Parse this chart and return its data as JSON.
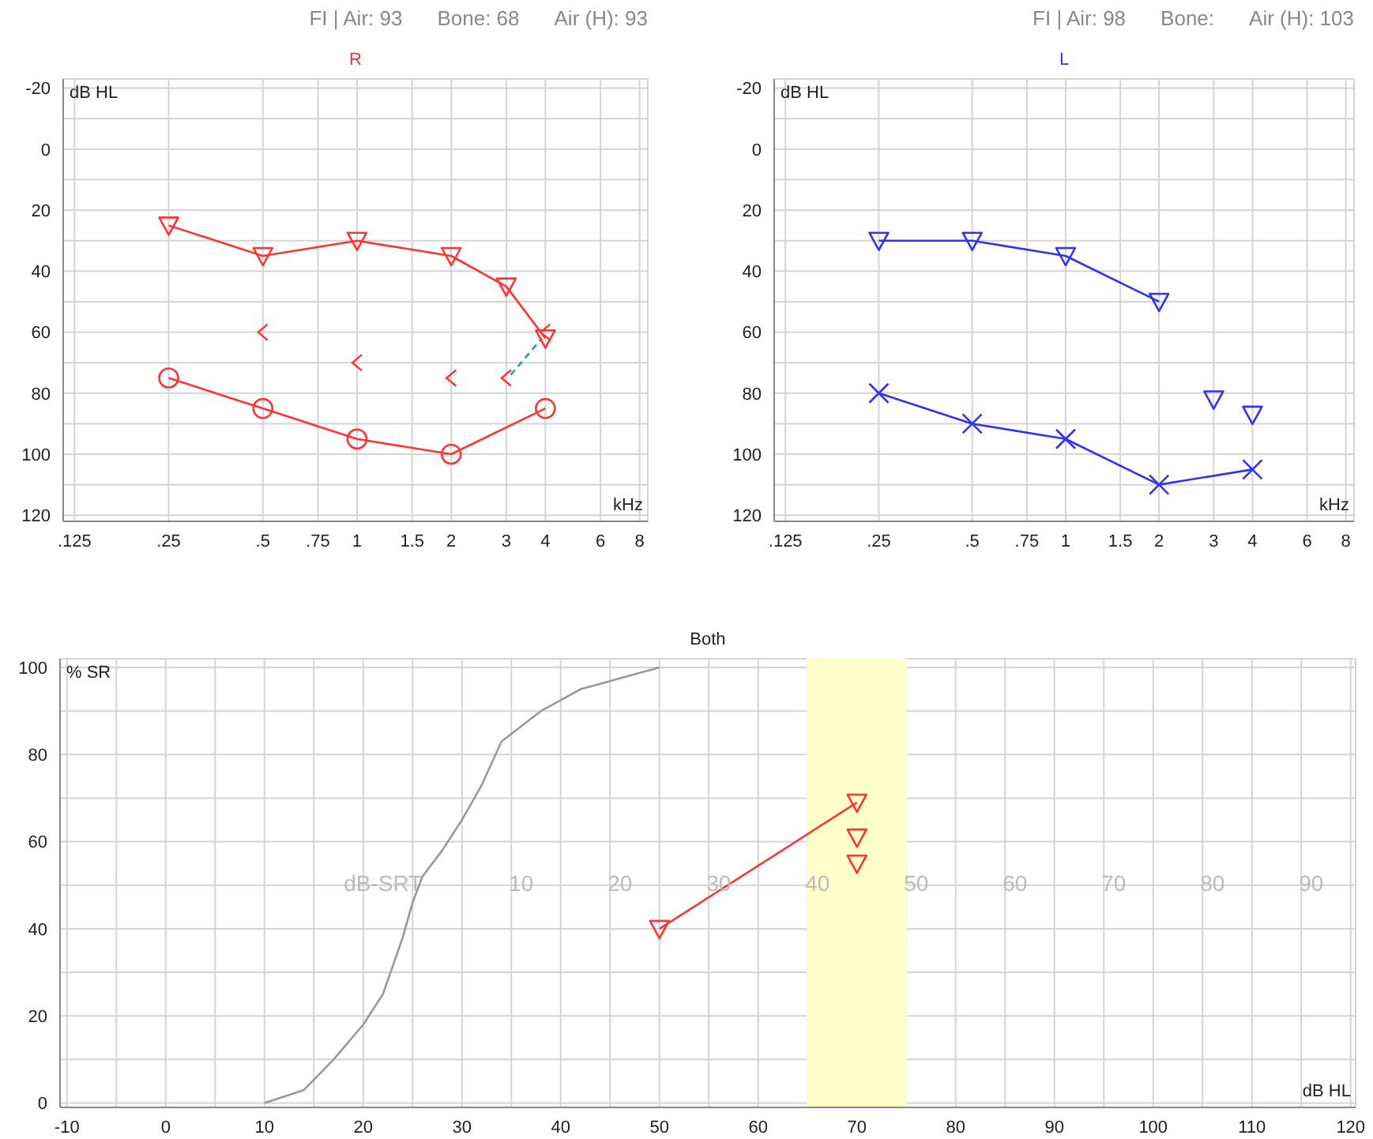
{
  "chart_data": [
    {
      "type": "line",
      "title": "R",
      "xlabel": "kHz",
      "ylabel": "dB HL",
      "annotations": [
        "FI | Air: 93",
        "Bone: 68",
        "Air (H): 93"
      ],
      "log": "x",
      "grid": true,
      "xlim": [
        0.115,
        8.5
      ],
      "xticks": [
        {
          "value": 0.125,
          "label": ".125"
        },
        {
          "value": 0.25,
          "label": ".25"
        },
        {
          "value": 0.5,
          "label": ".5"
        },
        {
          "value": 0.75,
          "label": ".75"
        },
        1,
        {
          "value": 1.5,
          "label": "1.5"
        },
        2,
        3,
        4,
        6,
        8
      ],
      "ylim": [
        122,
        -23
      ],
      "yticks": [
        -20,
        {
          "value": -10,
          "label": null
        },
        0,
        {
          "value": 10,
          "label": null
        },
        20,
        {
          "value": 30,
          "label": null
        },
        40,
        {
          "value": 50,
          "label": null
        },
        60,
        {
          "value": 70,
          "label": null
        },
        80,
        {
          "value": 90,
          "label": null
        },
        100,
        {
          "value": 110,
          "label": null
        },
        120
      ],
      "series": [
        {
          "type": "line",
          "color": "#ff3333",
          "marker": "triangle",
          "x": [
            0.25,
            0.5,
            1,
            2,
            3,
            4
          ],
          "values": [
            25,
            35,
            30,
            35,
            45,
            62
          ]
        },
        {
          "type": "scatter",
          "color": "#ff3333",
          "marker": "cross",
          "x": [
            0.5,
            1,
            2,
            3,
            4
          ],
          "values": [
            60,
            70,
            75,
            75,
            60
          ]
        },
        {
          "type": "line",
          "color": "#ff3333",
          "marker": "circle",
          "x": [
            0.25,
            0.5,
            1,
            2,
            4
          ],
          "values": [
            75,
            85,
            95,
            100,
            85
          ]
        },
        {
          "type": "line",
          "color": "#339999",
          "line_style": "dashed",
          "marker": "none",
          "x": [
            3.1,
            3.9
          ],
          "values": [
            74,
            62
          ]
        }
      ]
    },
    {
      "type": "line",
      "title": "L",
      "xlabel": "kHz",
      "ylabel": "dB HL",
      "annotations": [
        "FI | Air: 98",
        "Bone:",
        "Air (H): 103"
      ],
      "log": "x",
      "grid": true,
      "xlim": [
        0.115,
        8.5
      ],
      "xticks": [
        {
          "value": 0.125,
          "label": ".125"
        },
        {
          "value": 0.25,
          "label": ".25"
        },
        {
          "value": 0.5,
          "label": ".5"
        },
        {
          "value": 0.75,
          "label": ".75"
        },
        1,
        {
          "value": 1.5,
          "label": "1.5"
        },
        2,
        3,
        4,
        6,
        8
      ],
      "ylim": [
        122,
        -23
      ],
      "yticks": [
        -20,
        {
          "value": -10,
          "label": null
        },
        0,
        {
          "value": 10,
          "label": null
        },
        20,
        {
          "value": 30,
          "label": null
        },
        40,
        {
          "value": 50,
          "label": null
        },
        60,
        {
          "value": 70,
          "label": null
        },
        80,
        {
          "value": 90,
          "label": null
        },
        100,
        {
          "value": 110,
          "label": null
        },
        120
      ],
      "series": [
        {
          "type": "line",
          "color": "#3333ee",
          "marker": "triangle",
          "x": [
            0.25,
            0.5,
            1,
            2
          ],
          "values": [
            30,
            30,
            35,
            50
          ]
        },
        {
          "type": "scatter",
          "color": "#3333ee",
          "marker": "triangle",
          "x": [
            3,
            4
          ],
          "values": [
            82,
            87
          ]
        },
        {
          "type": "line",
          "color": "#3333ee",
          "marker": "cross",
          "x": [
            0.25,
            0.5,
            1,
            2,
            4
          ],
          "values": [
            80,
            90,
            95,
            110,
            105
          ]
        }
      ]
    },
    {
      "type": "line",
      "title": "Both",
      "xlabel": "dB HL",
      "ylabel": "% SR",
      "grid": true,
      "x2lim": [
        -36.7,
        94.5
      ],
      "x2ticks": [
        {
          "value": -4,
          "label": "dB-SRT"
        },
        10,
        20,
        30,
        40,
        50,
        60,
        70,
        80,
        90
      ],
      "xlim": [
        -10.7,
        120.5
      ],
      "xticks": [
        -10,
        {
          "value": -5,
          "label": null
        },
        0,
        {
          "value": 5,
          "label": null
        },
        10,
        {
          "value": 15,
          "label": null
        },
        20,
        {
          "value": 25,
          "label": null
        },
        30,
        {
          "value": 35,
          "label": null
        },
        40,
        {
          "value": 45,
          "label": null
        },
        50,
        {
          "value": 55,
          "label": null
        },
        60,
        {
          "value": 65,
          "label": null
        },
        70,
        {
          "value": 75,
          "label": null
        },
        80,
        {
          "value": 85,
          "label": null
        },
        90,
        {
          "value": 95,
          "label": null
        },
        100,
        {
          "value": 105,
          "label": null
        },
        110,
        {
          "value": 115,
          "label": null
        },
        120
      ],
      "ylim": [
        -1,
        102
      ],
      "yticks": [
        0,
        {
          "value": 10,
          "label": null
        },
        20,
        {
          "value": 30,
          "label": null
        },
        40,
        {
          "value": 50,
          "label": null
        },
        60,
        {
          "value": 70,
          "label": null
        },
        80,
        {
          "value": 90,
          "label": null
        },
        100
      ],
      "bands": [
        {
          "axis": "x",
          "from": 65,
          "to": 75,
          "color": "#ffffcc"
        }
      ],
      "series": [
        {
          "type": "line",
          "color": "#999999",
          "marker": "none",
          "x": [
            10,
            14,
            17,
            20,
            22,
            24,
            25,
            26,
            28,
            30,
            32,
            34,
            38,
            42,
            46,
            50
          ],
          "values": [
            0,
            3,
            10,
            18,
            25,
            38,
            46,
            52,
            58,
            65,
            73,
            83,
            90,
            95,
            97.5,
            100
          ]
        },
        {
          "type": "line",
          "color": "#ff3333",
          "marker": "triangle",
          "x": [
            50,
            70
          ],
          "values": [
            40,
            69
          ]
        },
        {
          "type": "scatter",
          "color": "#ff3333",
          "marker": "triangle",
          "x": [
            70,
            70
          ],
          "values": [
            61,
            55
          ]
        }
      ]
    }
  ]
}
